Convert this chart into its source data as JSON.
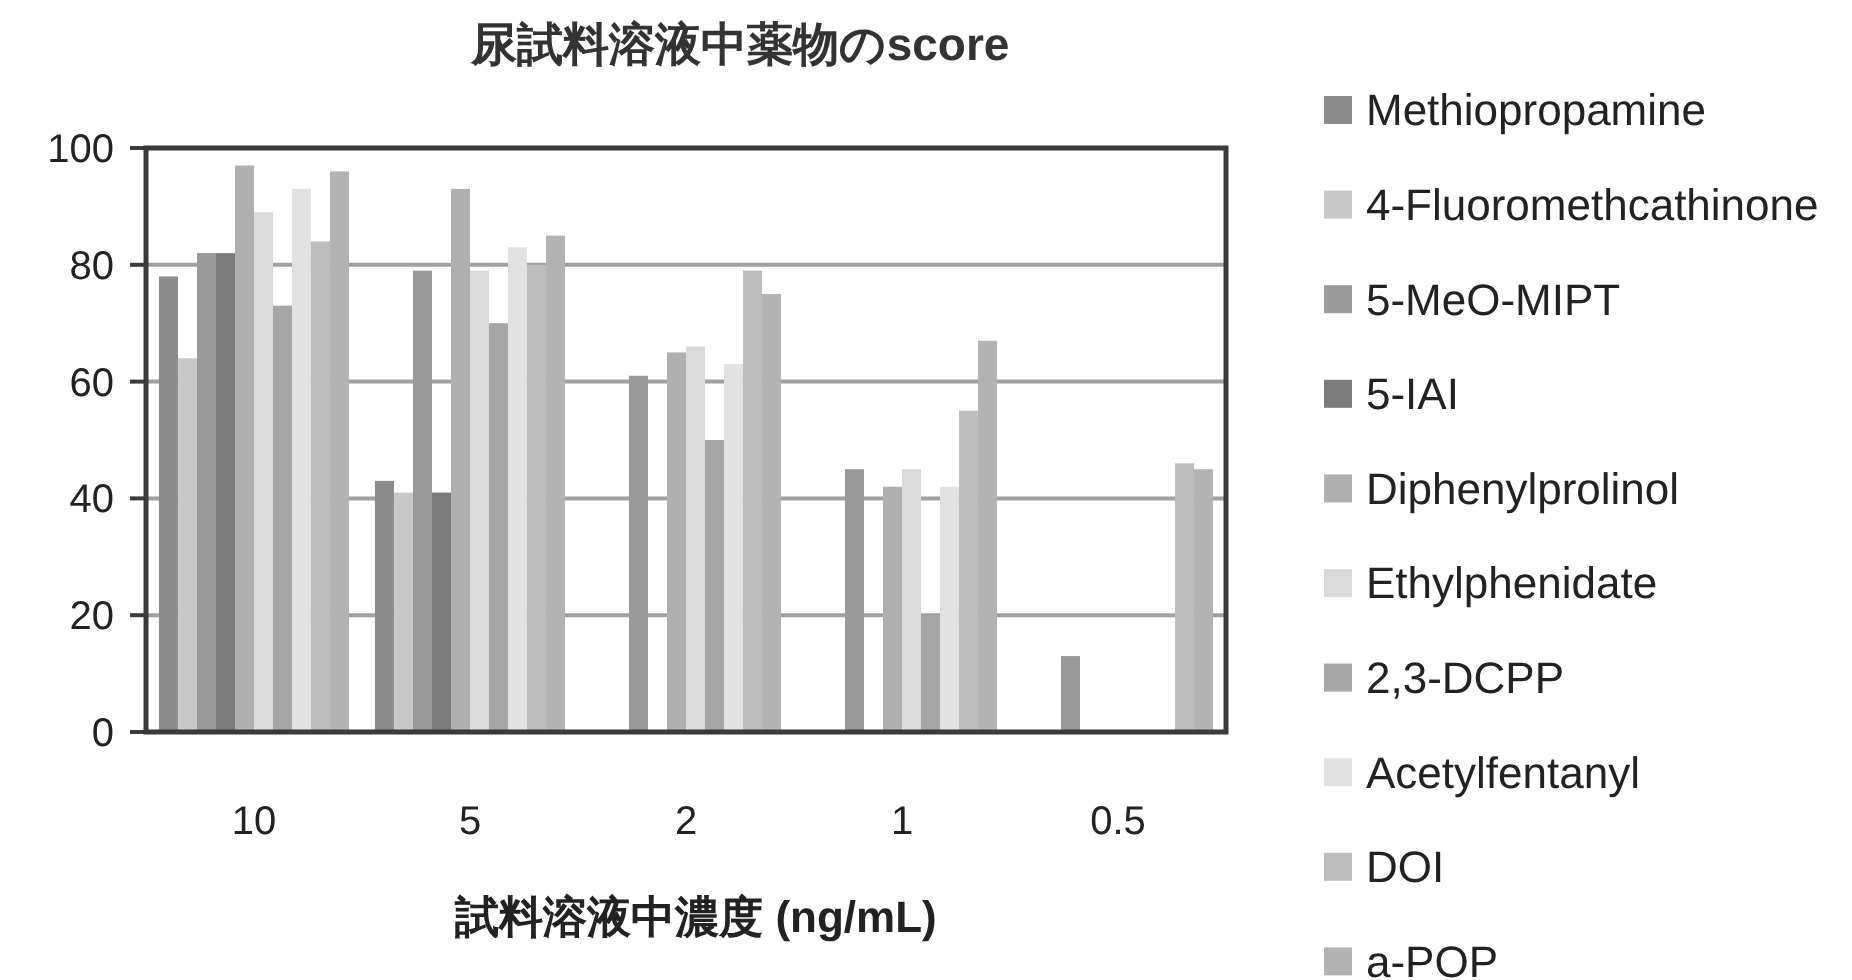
{
  "chart_data": {
    "type": "bar",
    "title": "尿試料溶液中薬物のscore",
    "xlabel": "試料溶液中濃度 (ng/mL)",
    "categories": [
      "10",
      "5",
      "2",
      "1",
      "0.5"
    ],
    "series": [
      {
        "name": "Methiopropamine",
        "color": "#8c8c8c",
        "values": [
          78,
          43,
          null,
          null,
          null
        ]
      },
      {
        "name": "4-Fluoromethcathinone",
        "color": "#c8c8c8",
        "values": [
          64,
          41,
          null,
          null,
          null
        ]
      },
      {
        "name": "5-MeO-MIPT",
        "color": "#9a9a9a",
        "values": [
          82,
          79,
          61,
          45,
          13
        ]
      },
      {
        "name": "5-IAI",
        "color": "#7c7c7c",
        "values": [
          82,
          41,
          null,
          null,
          null
        ]
      },
      {
        "name": "Diphenylprolinol",
        "color": "#b0b0b0",
        "values": [
          97,
          93,
          65,
          42,
          null
        ]
      },
      {
        "name": "Ethylphenidate",
        "color": "#dadada",
        "values": [
          89,
          79,
          66,
          45,
          null
        ]
      },
      {
        "name": "2,3-DCPP",
        "color": "#a6a6a6",
        "values": [
          73,
          70,
          50,
          20,
          null
        ]
      },
      {
        "name": "Acetylfentanyl",
        "color": "#e2e2e2",
        "values": [
          93,
          83,
          63,
          42,
          null
        ]
      },
      {
        "name": "DOI",
        "color": "#bdbdbd",
        "values": [
          84,
          80,
          79,
          55,
          46
        ]
      },
      {
        "name": "a-POP",
        "color": "#b3b3b3",
        "values": [
          96,
          85,
          75,
          67,
          45
        ]
      }
    ],
    "ylim": [
      0,
      100
    ],
    "yticks": [
      0,
      20,
      40,
      60,
      80,
      100
    ],
    "grid": "y",
    "legend": "right"
  }
}
